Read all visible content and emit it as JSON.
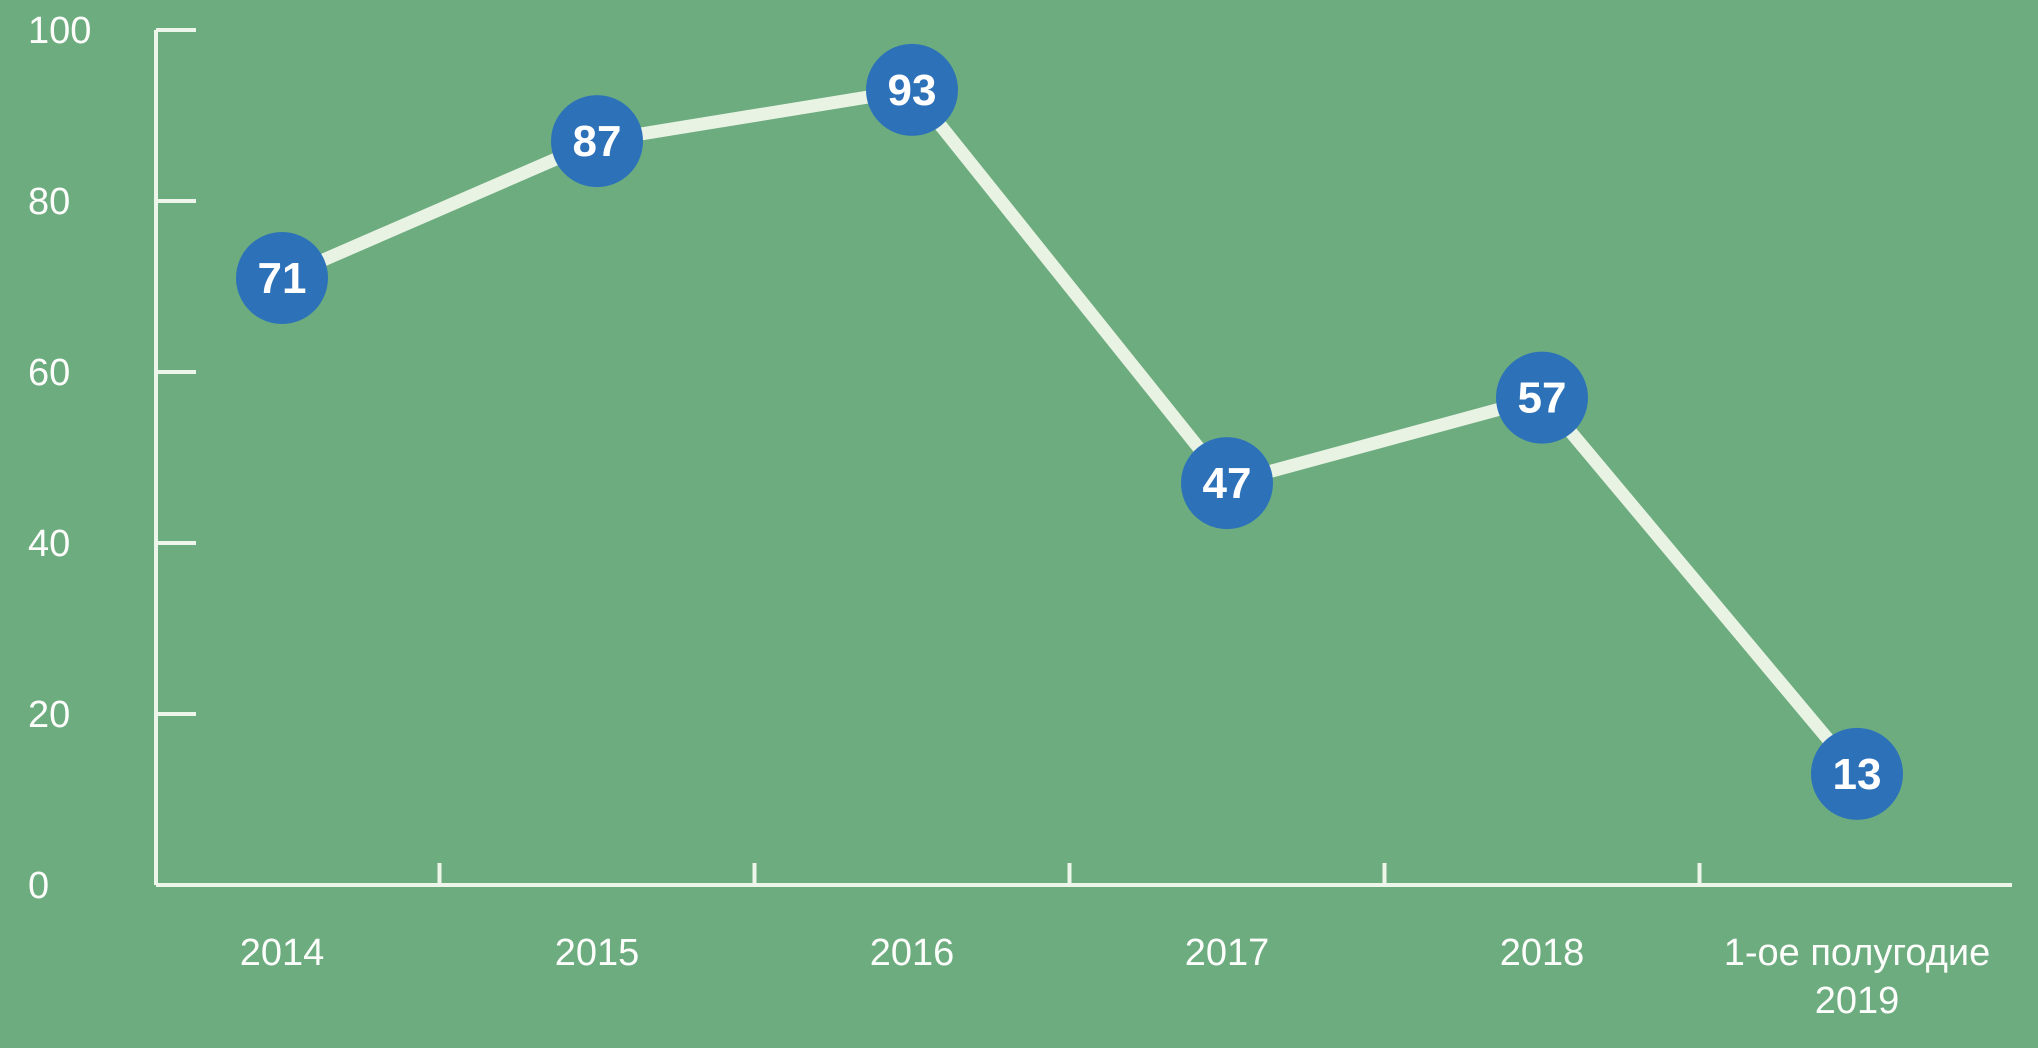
{
  "chart_data": {
    "type": "line",
    "categories": [
      "2014",
      "2015",
      "2016",
      "2017",
      "2018",
      "1-ое полугодие 2019"
    ],
    "values": [
      71,
      87,
      93,
      47,
      57,
      13
    ],
    "title": "",
    "xlabel": "",
    "ylabel": "",
    "ylim": [
      0,
      100
    ],
    "yticks": [
      0,
      20,
      40,
      60,
      80,
      100
    ],
    "grid": false,
    "legend": false,
    "data_labels": [
      "71",
      "87",
      "93",
      "47",
      "57",
      "13"
    ],
    "ytick_labels": [
      "0",
      "20",
      "40",
      "60",
      "80",
      "100"
    ],
    "colors": {
      "background": "#6dac7f",
      "line": "#e9f3e4",
      "axis": "#eef5ea",
      "marker_fill": "#2d72b9",
      "marker_text": "#ffffff",
      "axis_text": "#fdfefc"
    }
  }
}
